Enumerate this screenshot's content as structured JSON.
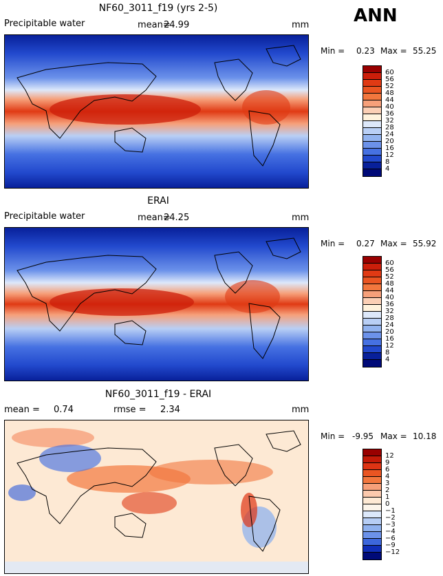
{
  "season_label": "ANN",
  "chart_data": [
    {
      "type": "heatmap",
      "title": "NF60_3011_f19 (yrs 2-5)",
      "variable": "Precipitable water",
      "mean_label": "mean=",
      "mean_value": "24.99",
      "units": "mm",
      "min_label": "Min =",
      "min_value": "0.23",
      "max_label": "Max =",
      "max_value": "55.25",
      "levels": [
        "60",
        "56",
        "52",
        "48",
        "44",
        "40",
        "36",
        "32",
        "28",
        "24",
        "20",
        "16",
        "12",
        "8",
        "4"
      ],
      "colors": [
        "#990000",
        "#cc1e0a",
        "#e03a14",
        "#ea5522",
        "#f2773e",
        "#f6a07a",
        "#fbcfb5",
        "#fff2dc",
        "#dde8fa",
        "#b9cff5",
        "#92b3ef",
        "#6c92ea",
        "#4671e2",
        "#2249cd",
        "#08209a",
        "#000a78"
      ]
    },
    {
      "type": "heatmap",
      "title": "ERAI",
      "variable": "Precipitable water",
      "mean_label": "mean=",
      "mean_value": "24.25",
      "units": "mm",
      "min_label": "Min =",
      "min_value": "0.27",
      "max_label": "Max =",
      "max_value": "55.92",
      "levels": [
        "60",
        "56",
        "52",
        "48",
        "44",
        "40",
        "36",
        "32",
        "28",
        "24",
        "20",
        "16",
        "12",
        "8",
        "4"
      ],
      "colors": [
        "#990000",
        "#cc1e0a",
        "#e03a14",
        "#ea5522",
        "#f2773e",
        "#f6a07a",
        "#fbcfb5",
        "#fff2dc",
        "#dde8fa",
        "#b9cff5",
        "#92b3ef",
        "#6c92ea",
        "#4671e2",
        "#2249cd",
        "#08209a",
        "#000a78"
      ]
    },
    {
      "type": "heatmap",
      "title": "NF60_3011_f19 - ERAI",
      "mean_label": "mean =",
      "mean_value": "0.74",
      "rmse_label": "rmse =",
      "rmse_value": "2.34",
      "units": "mm",
      "min_label": "Min =",
      "min_value": "-9.95",
      "max_label": "Max =",
      "max_value": "10.18",
      "levels": [
        "12",
        "9",
        "6",
        "4",
        "3",
        "2",
        "1",
        "0",
        "−1",
        "−2",
        "−3",
        "−4",
        "−6",
        "−9",
        "−12"
      ],
      "colors": [
        "#990000",
        "#c41a08",
        "#de3414",
        "#ea5522",
        "#f2773e",
        "#f6a07a",
        "#fbc9ad",
        "#fde9d4",
        "#fbf4ea",
        "#dce8fa",
        "#b6cdf4",
        "#8fb1ee",
        "#6c92ea",
        "#3d67dc",
        "#102eb8",
        "#000a78"
      ]
    }
  ]
}
